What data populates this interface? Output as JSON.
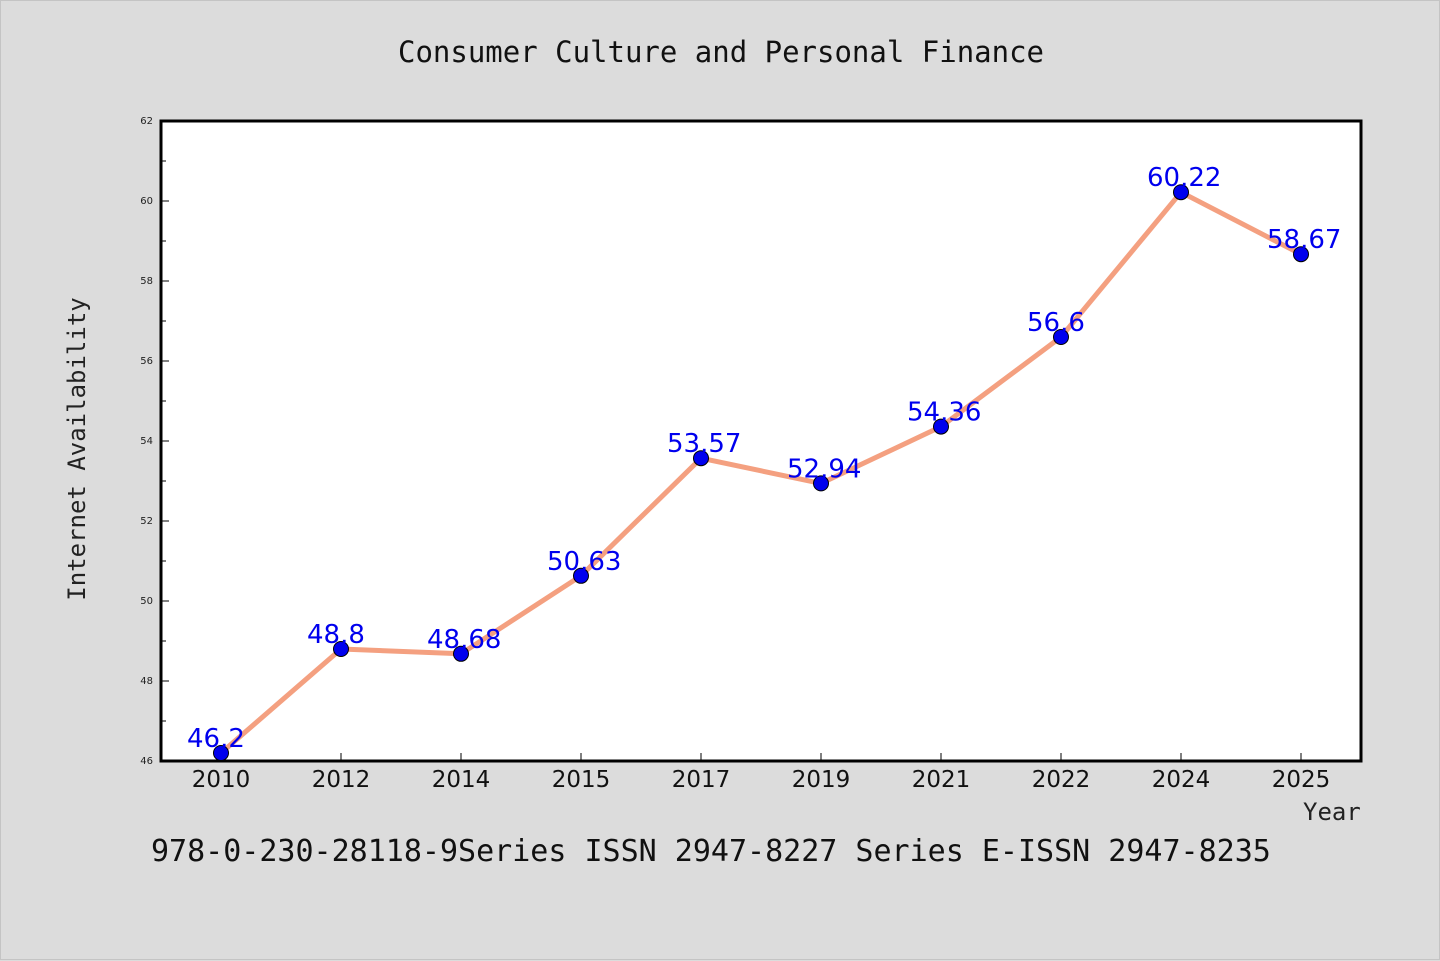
{
  "title": "Consumer Culture and Personal Finance",
  "footer_text": "978-0-230-28118-9Series ISSN 2947-8227 Series E-ISSN 2947-8235",
  "chart_data": {
    "type": "line",
    "title": "Consumer Culture and Personal Finance",
    "xlabel": "Year",
    "ylabel": "Internet Availability",
    "categories": [
      "2010",
      "2012",
      "2014",
      "2015",
      "2017",
      "2019",
      "2021",
      "2022",
      "2024",
      "2025"
    ],
    "series": [
      {
        "values": [
          46.2,
          48.8,
          48.68,
          50.63,
          53.57,
          52.94,
          54.36,
          56.6,
          60.22,
          58.67
        ],
        "labels": [
          "46.2",
          "48.8",
          "48.68",
          "50.63",
          "53.57",
          "52.94",
          "54.36",
          "56.6",
          "60.22",
          "58.67"
        ],
        "line_color": "#f4a080",
        "marker_color": "#0000ee",
        "label_color": "#0000ee"
      }
    ],
    "ylim": [
      46,
      62
    ],
    "yticks_major": [
      46,
      48,
      50,
      52,
      54,
      56,
      58,
      60,
      62
    ],
    "yticks_minor": [
      47,
      49,
      51,
      53,
      55,
      57,
      59,
      61
    ],
    "grid": false,
    "legend": "none"
  }
}
